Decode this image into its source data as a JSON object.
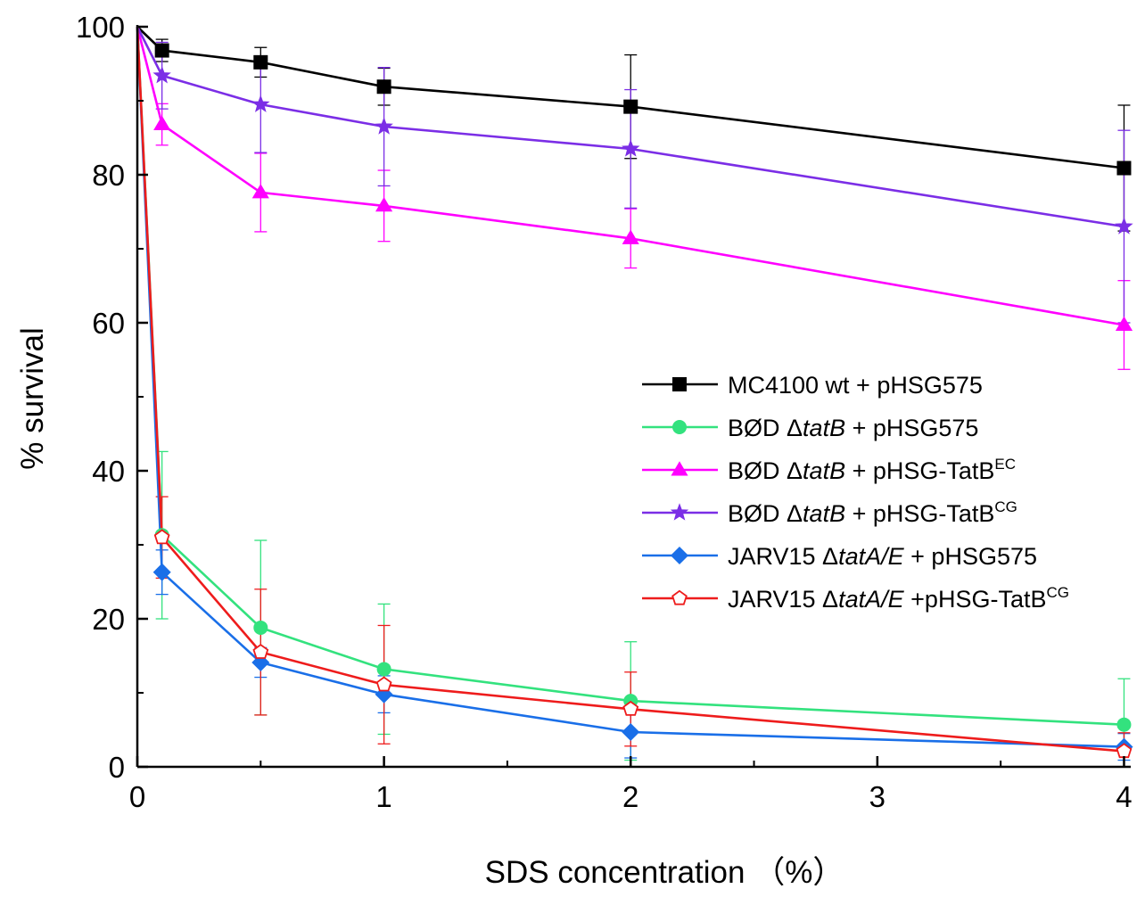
{
  "chart_data": {
    "type": "line",
    "title": "",
    "xlabel": "SDS concentration （%）",
    "ylabel": "% survival",
    "xlim": [
      0,
      4.02
    ],
    "ylim": [
      0,
      100
    ],
    "x_ticks": [
      0,
      1,
      2,
      3,
      4
    ],
    "y_ticks": [
      0,
      20,
      40,
      60,
      80,
      100
    ],
    "x_tick_labels": [
      "0",
      "1",
      "2",
      "3",
      "4"
    ],
    "y_tick_labels": [
      "0",
      "20",
      "40",
      "60",
      "80",
      "100"
    ],
    "grid": false,
    "legend_position": "right",
    "series": [
      {
        "name": "MC4100 wt + pHSG575",
        "legend": {
          "pre": "MC4100 wt + pHSG575",
          "italic": "",
          "post": "",
          "sup": ""
        },
        "color": "#000000",
        "marker": "square",
        "marker_fill": "#000000",
        "x": [
          0,
          0.1,
          0.5,
          1,
          2,
          4
        ],
        "y": [
          100,
          96.8,
          95.2,
          91.9,
          89.2,
          80.9
        ],
        "err": [
          0,
          1.5,
          2.0,
          2.5,
          7.0,
          8.5
        ]
      },
      {
        "name": "BØD ΔtatB + pHSG575",
        "legend": {
          "pre": "BØD Δ",
          "italic": "tatB",
          "post": " + pHSG575",
          "sup": ""
        },
        "color": "#33e27e",
        "marker": "circle",
        "marker_fill": "#33e27e",
        "x": [
          0,
          0.1,
          0.5,
          1,
          2,
          4
        ],
        "y": [
          100,
          31.3,
          18.8,
          13.2,
          8.9,
          5.7
        ],
        "err": [
          0,
          11.3,
          11.8,
          8.8,
          8.0,
          6.2
        ]
      },
      {
        "name": "BØD ΔtatB + pHSG-TatBEC",
        "legend": {
          "pre": "BØD Δ",
          "italic": "tatB",
          "post": " + pHSG-TatB",
          "sup": "EC"
        },
        "color": "#ff00ff",
        "marker": "triangle",
        "marker_fill": "#ff00ff",
        "x": [
          0,
          0.1,
          0.5,
          1,
          2,
          4
        ],
        "y": [
          100,
          86.8,
          77.6,
          75.8,
          71.4,
          59.7
        ],
        "err": [
          0,
          2.8,
          5.3,
          4.8,
          4.0,
          6.0
        ]
      },
      {
        "name": "BØD ΔtatB + pHSG-TatBCG",
        "legend": {
          "pre": "BØD Δ",
          "italic": "tatB",
          "post": " + pHSG-TatB",
          "sup": "CG"
        },
        "color": "#7b2ee6",
        "marker": "star",
        "marker_fill": "#7b2ee6",
        "x": [
          0,
          0.1,
          0.5,
          1,
          2,
          4
        ],
        "y": [
          100,
          93.4,
          89.5,
          86.5,
          83.5,
          73.0
        ],
        "err": [
          0,
          4.5,
          6.5,
          8.0,
          8.0,
          13.0
        ]
      },
      {
        "name": "JARV15 ΔtatA/E + pHSG575",
        "legend": {
          "pre": "JARV15 Δ",
          "italic": "tatA/E",
          "post": " + pHSG575",
          "sup": ""
        },
        "color": "#1a6fe8",
        "marker": "diamond",
        "marker_fill": "#1a6fe8",
        "x": [
          0,
          0.1,
          0.5,
          1,
          2,
          4
        ],
        "y": [
          100,
          26.3,
          14.1,
          9.8,
          4.7,
          2.7
        ],
        "err": [
          0,
          3.0,
          2.0,
          2.5,
          3.5,
          1.8
        ]
      },
      {
        "name": "JARV15 ΔtatA/E +pHSG-TatBCG",
        "legend": {
          "pre": "JARV15 Δ",
          "italic": "tatA/E",
          "post": " +pHSG-TatB",
          "sup": "CG"
        },
        "color": "#ee1c1c",
        "marker": "pentagon",
        "marker_fill": "#ffffff",
        "x": [
          0,
          0.1,
          0.5,
          1,
          2,
          4
        ],
        "y": [
          100,
          31.0,
          15.5,
          11.1,
          7.8,
          2.1
        ],
        "err": [
          0,
          5.5,
          8.5,
          8.0,
          5.0,
          2.5
        ]
      }
    ]
  }
}
